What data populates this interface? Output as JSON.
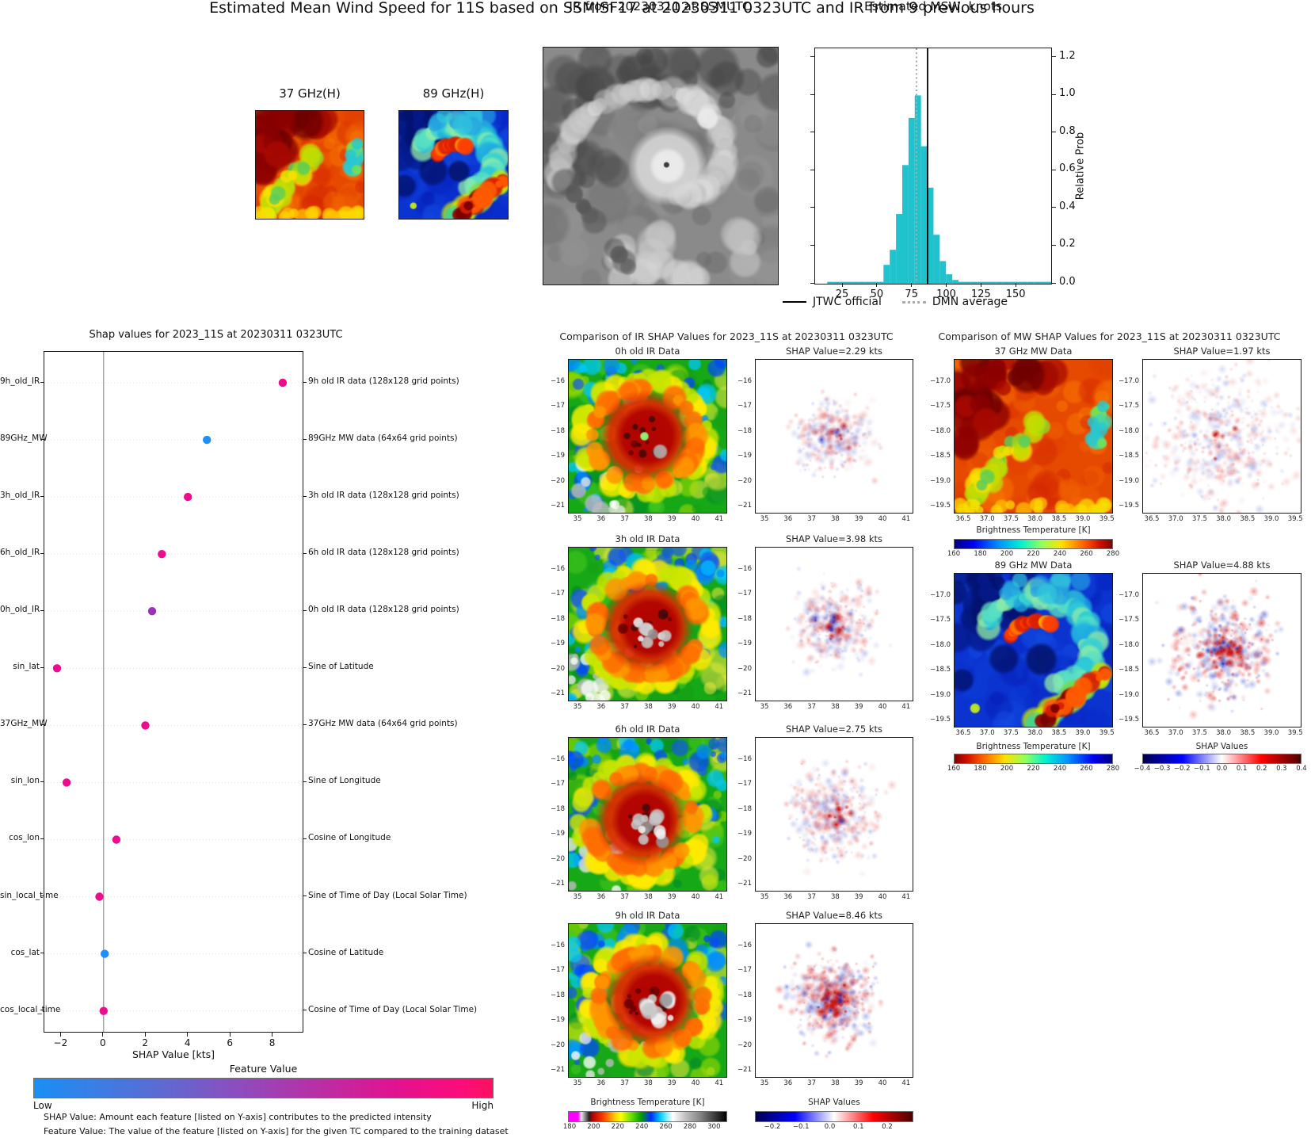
{
  "app": {
    "title": "Estimated Mean Wind Speed for 11S based on SSMISF17 at 20230311 0323UTC and IR from 9 previous hours"
  },
  "overview": {
    "mw37_label": "37 GHz(H)",
    "mw89_label": "89 GHz(H)",
    "ir_title": "IR from 20230311 at  SSMUTC",
    "hist_title": "Estimated MSW, knots"
  },
  "shap_plot": {
    "colorbar": {
      "title": "Feature Value",
      "low": "Low",
      "high": "High"
    },
    "footnotes": [
      "SHAP Value: Amount each feature [listed on Y-axis] contributes to the predicted intensity",
      "Feature Value: The value of the feature [listed on Y-axis] for the given TC compared to the training dataset"
    ]
  },
  "ir_comparison": {
    "title": "Comparison of IR SHAP Values for 2023_11S at 20230311 0323UTC",
    "rows": [
      {
        "data_title": "0h old IR Data",
        "shap_title": "SHAP Value=2.29 kts"
      },
      {
        "data_title": "3h old IR Data",
        "shap_title": "SHAP Value=3.98 kts"
      },
      {
        "data_title": "6h old IR Data",
        "shap_title": "SHAP Value=2.75 kts"
      },
      {
        "data_title": "9h old IR Data",
        "shap_title": "SHAP Value=8.46 kts"
      }
    ],
    "xticks": [
      "35",
      "36",
      "37",
      "38",
      "39",
      "40",
      "41"
    ],
    "yticks": [
      "−16",
      "−17",
      "−18",
      "−19",
      "−20",
      "−21"
    ],
    "bt_colorbar": {
      "title": "Brightness Temperature [K]",
      "ticks": [
        "180",
        "200",
        "220",
        "240",
        "260",
        "280",
        "300"
      ]
    },
    "shap_colorbar": {
      "title": "SHAP Values",
      "ticks": [
        "−0.2",
        "−0.1",
        "0.0",
        "0.1",
        "0.2"
      ]
    }
  },
  "mw_comparison": {
    "title": "Comparison of MW SHAP Values for 2023_11S at 20230311 0323UTC",
    "rows": [
      {
        "data_title": "37 GHz MW Data",
        "shap_title": "SHAP Value=1.97 kts"
      },
      {
        "data_title": "89 GHz MW Data",
        "shap_title": "SHAP Value=4.88 kts"
      }
    ],
    "xticks": [
      "36.5",
      "37.0",
      "37.5",
      "38.0",
      "38.5",
      "39.0",
      "39.5"
    ],
    "yticks": [
      "−17.0",
      "−17.5",
      "−18.0",
      "−18.5",
      "−19.0",
      "−19.5"
    ],
    "bt_colorbar_37": {
      "title": "Brightness Temperature [K]",
      "ticks": [
        "160",
        "180",
        "200",
        "220",
        "240",
        "260",
        "280"
      ]
    },
    "bt_colorbar_89": {
      "title": "Brightness Temperature [K]",
      "ticks": [
        "160",
        "180",
        "200",
        "220",
        "240",
        "260",
        "280"
      ]
    },
    "shap_colorbar": {
      "title": "SHAP Values",
      "ticks": [
        "−0.4",
        "−0.3",
        "−0.2",
        "−0.1",
        "0.0",
        "0.1",
        "0.2",
        "0.3",
        "0.4"
      ]
    }
  },
  "chart_data": [
    {
      "id": "msw_histogram",
      "type": "bar",
      "title": "Estimated MSW, knots",
      "ylabel": "Relative Prob",
      "xlim": [
        5,
        175
      ],
      "ylim": [
        0,
        1.25
      ],
      "xticks": [
        "25",
        "50",
        "75",
        "100",
        "125",
        "150"
      ],
      "yticks": [
        "0.0",
        "0.2",
        "0.4",
        "0.6",
        "0.8",
        "1.0",
        "1.2"
      ],
      "bar_color": "#1fc2cd",
      "bin_width": 4.5,
      "bin_centers": [
        16,
        20.5,
        25,
        29.5,
        34,
        38.5,
        43,
        47.5,
        52,
        56.5,
        61,
        65.5,
        70,
        74.5,
        79,
        83.5,
        88,
        92.5,
        97,
        101.5,
        106,
        110.5,
        115,
        119.5,
        124,
        128.5,
        133,
        137.5,
        142,
        146.5,
        151,
        155.5,
        160,
        164.5,
        169,
        173.5
      ],
      "values": [
        0.01,
        0.01,
        0.01,
        0.01,
        0.01,
        0.01,
        0.01,
        0.01,
        0.01,
        0.1,
        0.18,
        0.37,
        0.63,
        0.88,
        1.0,
        0.73,
        0.51,
        0.26,
        0.12,
        0.05,
        0.02,
        0.01,
        0.01,
        0.01,
        0.01,
        0.01,
        0.01,
        0.01,
        0.01,
        0.01,
        0.01,
        0.01,
        0.01,
        0.01,
        0.01,
        0.01
      ],
      "reference_lines": [
        {
          "label": "JTWC official",
          "x": 86,
          "style": "solid",
          "color": "#000000"
        },
        {
          "label": "DMN average",
          "x": 78,
          "style": "dotted",
          "color": "#ababab"
        }
      ]
    },
    {
      "id": "shap_feature_scatter",
      "type": "scatter",
      "title": "Shap values for 2023_11S at 20230311 0323UTC",
      "xlabel": "SHAP Value [kts]",
      "xlim": [
        -2.8,
        9.4
      ],
      "xticks": [
        "−2",
        "0",
        "2",
        "4",
        "6",
        "8"
      ],
      "xtick_values": [
        -2,
        0,
        2,
        4,
        6,
        8
      ],
      "color_scale": {
        "low": "#1e8fff",
        "mid": "#9b30bc",
        "high": "#ee0c8e"
      },
      "points": [
        {
          "feature": "9h_old_IR",
          "description": "9h old IR data (128x128 grid points)",
          "shap_kts": 8.46,
          "feature_value": "high"
        },
        {
          "feature": "89GHz_MW",
          "description": "89GHz MW data (64x64 grid points)",
          "shap_kts": 4.88,
          "feature_value": "low"
        },
        {
          "feature": "3h_old_IR",
          "description": "3h old IR data (128x128 grid points)",
          "shap_kts": 3.98,
          "feature_value": "high"
        },
        {
          "feature": "6h_old_IR",
          "description": "6h old IR data (128x128 grid points)",
          "shap_kts": 2.75,
          "feature_value": "high"
        },
        {
          "feature": "0h_old_IR",
          "description": "0h old IR data (128x128 grid points)",
          "shap_kts": 2.29,
          "feature_value": "mid"
        },
        {
          "feature": "sin_lat",
          "description": "Sine of Latitude",
          "shap_kts": -2.2,
          "feature_value": "high"
        },
        {
          "feature": "37GHz_MW",
          "description": "37GHz MW data (64x64 grid points)",
          "shap_kts": 1.97,
          "feature_value": "high"
        },
        {
          "feature": "sin_lon",
          "description": "Sine of Longitude",
          "shap_kts": -1.75,
          "feature_value": "high"
        },
        {
          "feature": "cos_lon",
          "description": "Cosine of Longitude",
          "shap_kts": 0.6,
          "feature_value": "high"
        },
        {
          "feature": "sin_local_time",
          "description": "Sine of Time of Day (Local Solar Time)",
          "shap_kts": -0.2,
          "feature_value": "high"
        },
        {
          "feature": "cos_lat",
          "description": "Cosine of Latitude",
          "shap_kts": 0.05,
          "feature_value": "low"
        },
        {
          "feature": "cos_local_time",
          "description": "Cosine of Time of Day (Local Solar Time)",
          "shap_kts": 0.0,
          "feature_value": "high"
        }
      ]
    }
  ]
}
